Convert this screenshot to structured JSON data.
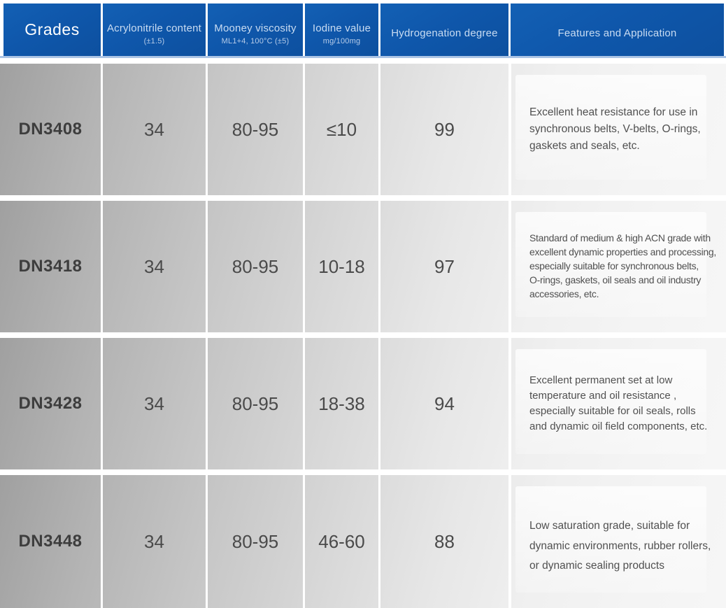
{
  "table": {
    "title": "HNBR grades specification table",
    "header": {
      "grades_label": "Grades",
      "columns": [
        {
          "label": "Acrylonitrile content",
          "sub": "(±1.5)"
        },
        {
          "label": "Mooney viscosity",
          "sub": "ML1+4, 100°C (±5)"
        },
        {
          "label": "Iodine value",
          "sub": "mg/100mg"
        },
        {
          "label": "Hydrogenation degree",
          "sub": ""
        },
        {
          "label": "Features and Application",
          "sub": ""
        }
      ]
    },
    "rows": [
      {
        "grade": "DN3408",
        "acrylonitrile": "34",
        "mooney": "80-95",
        "iodine": "≤10",
        "hydrogenation": "99",
        "features_lines": [
          "Excellent heat resistance for use in",
          "synchronous belts, V-belts, O-rings,",
          "gaskets and seals, etc."
        ]
      },
      {
        "grade": "DN3418",
        "acrylonitrile": "34",
        "mooney": "80-95",
        "iodine": "10-18",
        "hydrogenation": "97",
        "features_lines": [
          "Standard of medium & high ACN grade with",
          "excellent dynamic properties and processing,",
          "especially suitable for synchronous belts,",
          "O-rings, gaskets, oil seals and oil industry",
          "accessories, etc."
        ]
      },
      {
        "grade": "DN3428",
        "acrylonitrile": "34",
        "mooney": "80-95",
        "iodine": "18-38",
        "hydrogenation": "94",
        "features_lines": [
          "Excellent permanent set at low",
          "temperature and oil resistance ,",
          "especially suitable for oil seals, rolls",
          "and dynamic oil field components, etc."
        ]
      },
      {
        "grade": "DN3448",
        "acrylonitrile": "34",
        "mooney": "80-95",
        "iodine": "46-60",
        "hydrogenation": "88",
        "features_lines": [
          "Low saturation grade, suitable for",
          "dynamic environments, rubber rollers,",
          "or dynamic sealing products"
        ]
      }
    ]
  },
  "colors": {
    "header_blue": "#0f57ab",
    "header_text_light": "#c9dcf2",
    "header_subtext": "#b6cce9",
    "header_underline": "#abc4e5",
    "grades_text": "#ffffff",
    "row_gradient_dark": "#a0a0a0",
    "row_gradient_light": "#f6f6f6",
    "cell_divider": "#ffffff",
    "grade_text": "#3d3d3d",
    "value_text": "#4a4a4a",
    "features_text": "#505050"
  }
}
